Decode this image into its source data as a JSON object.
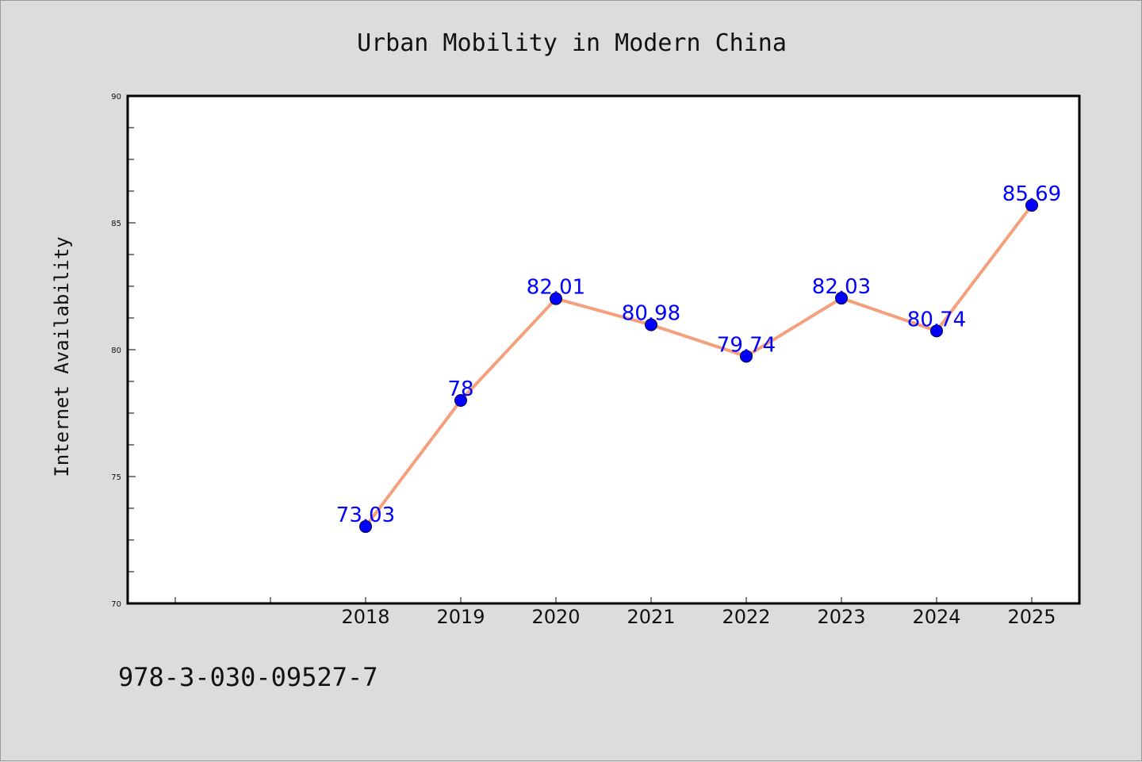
{
  "chart_data": {
    "type": "line",
    "title": "Urban Mobility in Modern China",
    "xlabel": "",
    "ylabel": "Internet Availability",
    "categories": [
      "2018",
      "2019",
      "2020",
      "2021",
      "2022",
      "2023",
      "2024",
      "2025"
    ],
    "series": [
      {
        "values": [
          73.03,
          78,
          82.01,
          80.98,
          79.74,
          82.03,
          80.74,
          85.69
        ],
        "data_labels": [
          "73.03",
          "78",
          "82.01",
          "80.98",
          "79.74",
          "82.03",
          "80.74",
          "85.69"
        ],
        "line_color": "#f4a07c",
        "marker_color": "#0000ff"
      }
    ],
    "ylim": [
      70,
      90
    ],
    "yticks": [
      "70",
      "75",
      "80",
      "85",
      "90"
    ],
    "grid": false,
    "legend": "none"
  },
  "footer": {
    "isbn": "978-3-030-09527-7"
  },
  "colors": {
    "background": "#dcdcdc",
    "plot_background": "#ffffff",
    "label_color": "#0000ff"
  }
}
